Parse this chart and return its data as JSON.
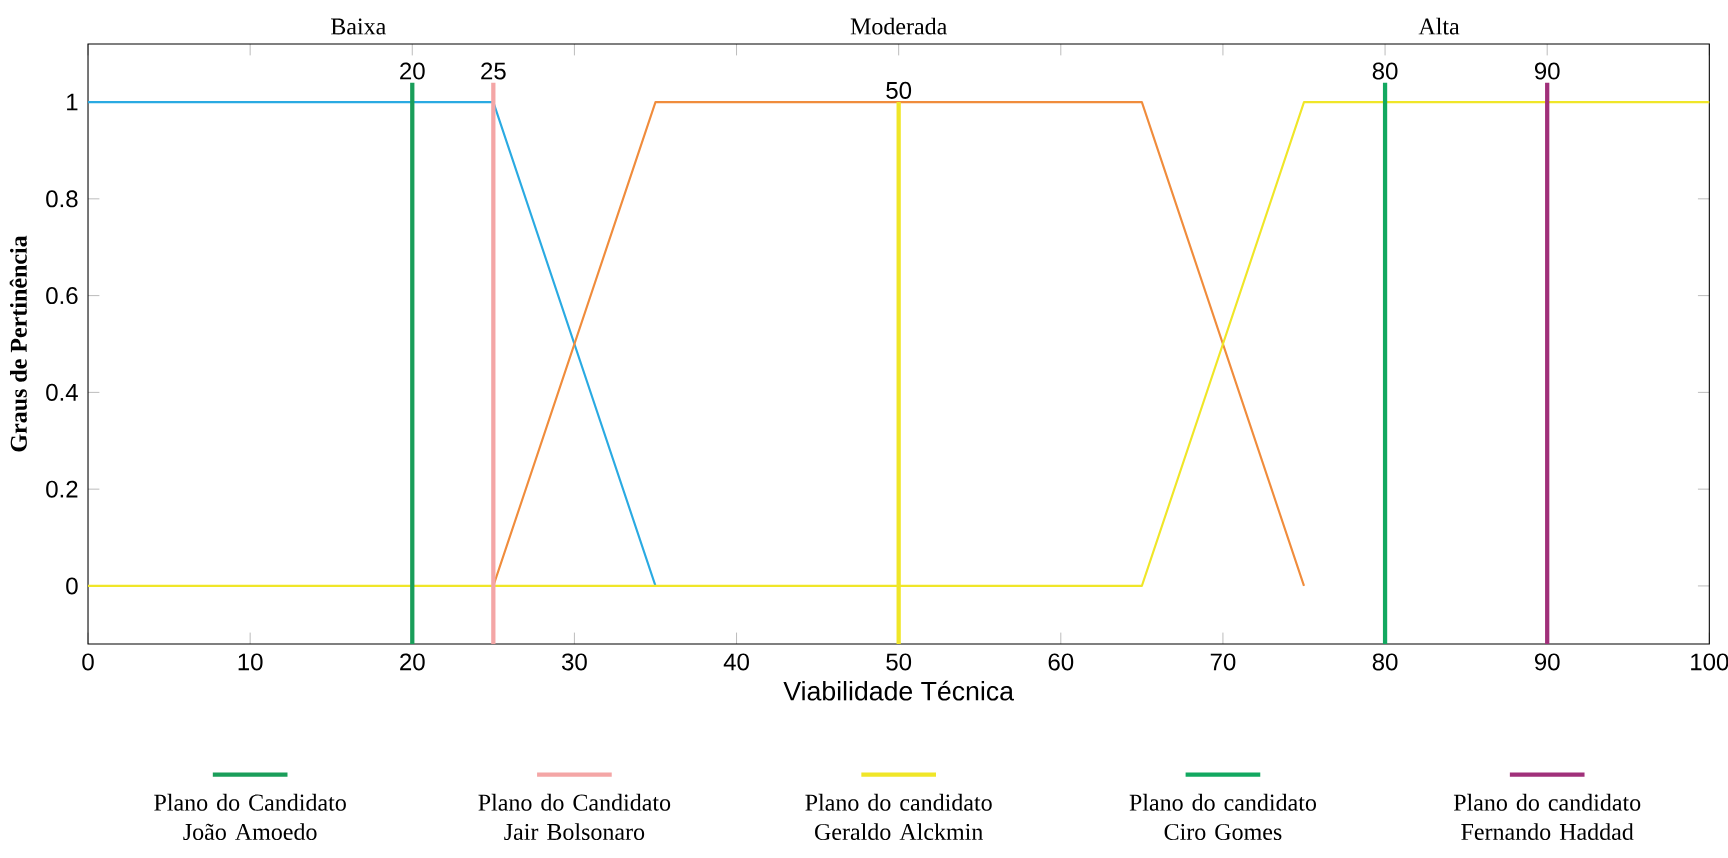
{
  "chart_data": {
    "type": "line",
    "xlabel": "Viabilidade Técnica",
    "ylabel": "Graus de Pertinência",
    "xlim": [
      0,
      100
    ],
    "ylim": [
      -0.12,
      1.12
    ],
    "xticks": [
      0,
      10,
      20,
      30,
      40,
      50,
      60,
      70,
      80,
      90,
      100
    ],
    "yticks": [
      0,
      0.2,
      0.4,
      0.6,
      0.8,
      1
    ],
    "marker": "none",
    "line_style": "solid",
    "legend": "bottom",
    "series": [
      {
        "color": "#2aaae2",
        "x": [
          0,
          25,
          35
        ],
        "values": [
          1,
          1,
          0
        ]
      },
      {
        "color": "#f08c3c",
        "x": [
          25,
          35,
          65,
          75
        ],
        "values": [
          0,
          1,
          1,
          0
        ]
      },
      {
        "color": "#f0e628",
        "x": [
          0,
          65,
          75,
          100
        ],
        "values": [
          0,
          0,
          1,
          1
        ]
      },
      {
        "name": "Plano do Candidato João Amoedo",
        "color": "#1a9e5a",
        "x": [
          20,
          20
        ],
        "values": [
          -0.12,
          1.04
        ]
      },
      {
        "name": "Plano do Candidato Jair Bolsonaro",
        "color": "#f4a6a6",
        "x": [
          25,
          25
        ],
        "values": [
          -0.12,
          1.04
        ]
      },
      {
        "name": "Plano do candidato Geraldo Alckmin",
        "color": "#f0e628",
        "x": [
          50,
          50
        ],
        "values": [
          -0.12,
          1.0
        ]
      },
      {
        "name": "Plano do candidato Ciro Gomes",
        "color": "#12a860",
        "x": [
          80,
          80
        ],
        "values": [
          -0.12,
          1.04
        ]
      },
      {
        "name": "Plano do candidato Fernando Haddad",
        "color": "#a0307a",
        "x": [
          90,
          90
        ],
        "values": [
          -0.12,
          1.04
        ]
      }
    ],
    "annotations": [
      "Baixa",
      "Moderada",
      "Alta",
      {
        "text": "20",
        "x": 20,
        "y": 1.04
      },
      {
        "text": "25",
        "x": 25,
        "y": 1.04
      },
      {
        "text": "50",
        "x": 50,
        "y": 1.0
      },
      {
        "text": "80",
        "x": 80,
        "y": 1.04
      },
      {
        "text": "90",
        "x": 90,
        "y": 1.04
      }
    ]
  }
}
